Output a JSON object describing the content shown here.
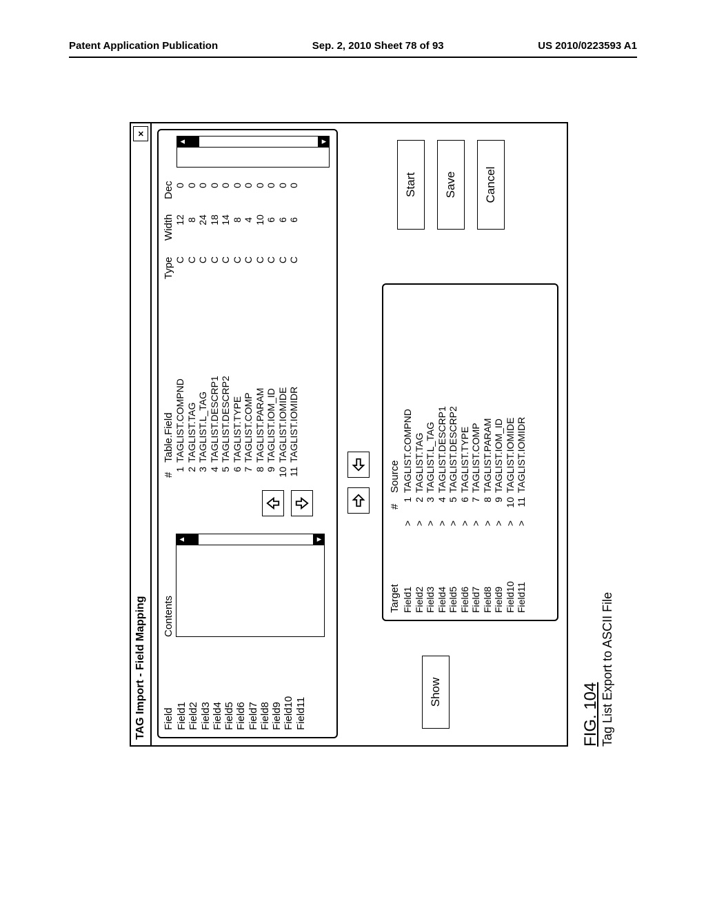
{
  "page_header": {
    "left": "Patent Application Publication",
    "center": "Sep. 2, 2010  Sheet 78 of 93",
    "right": "US 2010/0223593 A1"
  },
  "dialog": {
    "title": "TAG Import - Field Mapping",
    "close_label": "×"
  },
  "columns": {
    "field": "Field",
    "contents": "Contents",
    "num": "#",
    "table_field": "Table.Field",
    "type": "Type",
    "width": "Width",
    "dec": "Dec",
    "target": "Target",
    "source": "Source"
  },
  "fields": [
    {
      "n": "1",
      "name": "Field1",
      "tf": "TAGLIST.COMPND",
      "type": "C",
      "width": "12",
      "dec": "0",
      "arrow": ">"
    },
    {
      "n": "2",
      "name": "Field2",
      "tf": "TAGLIST.TAG",
      "type": "C",
      "width": "8",
      "dec": "0",
      "arrow": ">"
    },
    {
      "n": "3",
      "name": "Field3",
      "tf": "TAGLIST.L_TAG",
      "type": "C",
      "width": "24",
      "dec": "0",
      "arrow": ">"
    },
    {
      "n": "4",
      "name": "Field4",
      "tf": "TAGLIST.DESCRP1",
      "type": "C",
      "width": "18",
      "dec": "0",
      "arrow": ">"
    },
    {
      "n": "5",
      "name": "Field5",
      "tf": "TAGLIST.DESCRP2",
      "type": "C",
      "width": "14",
      "dec": "0",
      "arrow": ">"
    },
    {
      "n": "6",
      "name": "Field6",
      "tf": "TAGLIST.TYPE",
      "type": "C",
      "width": "8",
      "dec": "0",
      "arrow": ">"
    },
    {
      "n": "7",
      "name": "Field7",
      "tf": "TAGLIST.COMP",
      "type": "C",
      "width": "4",
      "dec": "0",
      "arrow": ">"
    },
    {
      "n": "8",
      "name": "Field8",
      "tf": "TAGLIST.PARAM",
      "type": "C",
      "width": "10",
      "dec": "0",
      "arrow": ">"
    },
    {
      "n": "9",
      "name": "Field9",
      "tf": "TAGLIST.IOM_ID",
      "type": "C",
      "width": "6",
      "dec": "0",
      "arrow": ">"
    },
    {
      "n": "10",
      "name": "Field10",
      "tf": "TAGLIST.IOMIDE",
      "type": "C",
      "width": "6",
      "dec": "0",
      "arrow": ">"
    },
    {
      "n": "11",
      "name": "Field11",
      "tf": "TAGLIST.IOMIDR",
      "type": "C",
      "width": "6",
      "dec": "0",
      "arrow": ">"
    }
  ],
  "buttons": {
    "show": "Show",
    "start": "Start",
    "save": "Save",
    "cancel": "Cancel"
  },
  "figure": {
    "number": "FIG. 104",
    "caption": "Tag List Export to ASCII File"
  }
}
